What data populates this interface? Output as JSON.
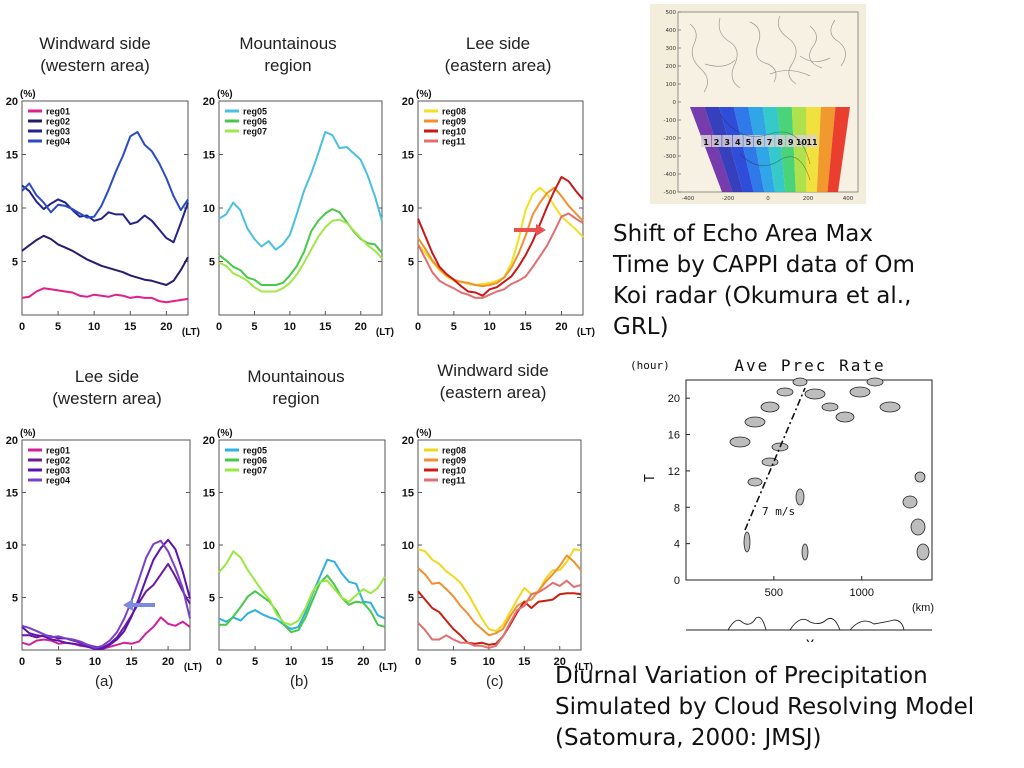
{
  "titles": {
    "a1": "Windward side\n(western area)",
    "b1": "Mountainous\nregion",
    "c1": "Lee side\n(eastern area)",
    "a2": "Lee side\n(western area)",
    "b2": "Mountainous\nregion",
    "c2": "Windward side\n(eastern area)"
  },
  "sublabels": {
    "a": "(a)",
    "b": "(b)",
    "c": "(c)"
  },
  "caption_top": "Shift of Echo Area Max Time by CAPPI data of Om Koi radar (Okumura et al., GRL)",
  "caption_bottom": "Diurnal Variation of Precipitation Simulated by Cloud Resolving Model (Satomura, 2000: JMSJ)",
  "axis_common": {
    "y_unit": "(%)",
    "x_unit": "(LT)",
    "yticks": [
      "5",
      "10",
      "15",
      "20"
    ],
    "xticks": [
      "0",
      "5",
      "10",
      "15",
      "20"
    ]
  },
  "radar_map": {
    "yticks": [
      "500",
      "400",
      "300",
      "200",
      "100",
      "0",
      "-100",
      "-200",
      "-300",
      "-400",
      "-500"
    ],
    "xticks": [
      "-400",
      "-200",
      "0",
      "200",
      "400"
    ],
    "regions": [
      "1",
      "2",
      "3",
      "4",
      "5",
      "6",
      "7",
      "8",
      "9",
      "10",
      "11"
    ],
    "colors": [
      "#6a2ca8",
      "#2530b8",
      "#1d3fd8",
      "#1e6fe8",
      "#1ea0e8",
      "#24c6c8",
      "#3cd070",
      "#a8e040",
      "#f0e030",
      "#f09020",
      "#e83020"
    ]
  },
  "model_panel": {
    "title": "Ave Prec Rate",
    "yunit": "(hour)",
    "ylabel": "T",
    "xlabel": "X",
    "xunit": "(km)",
    "yticks": [
      "0",
      "4",
      "8",
      "12",
      "16",
      "20"
    ],
    "xticks": [
      "500",
      "1000"
    ],
    "annotation": "7 m/s"
  },
  "chart_data": [
    {
      "type": "line",
      "panel": "a1",
      "title": "Windward side (western area)",
      "ylabel": "(%)",
      "xlabel": "(LT)",
      "xlim": [
        0,
        23
      ],
      "ylim": [
        0,
        20
      ],
      "x": [
        0,
        1,
        2,
        3,
        4,
        5,
        6,
        7,
        8,
        9,
        10,
        11,
        12,
        13,
        14,
        15,
        16,
        17,
        18,
        19,
        20,
        21,
        22,
        23
      ],
      "series": [
        {
          "name": "reg01",
          "color": "#e0208a",
          "values": [
            1.6,
            1.7,
            2.2,
            2.5,
            2.4,
            2.3,
            2.2,
            2.1,
            1.8,
            1.7,
            1.9,
            1.8,
            1.7,
            1.9,
            1.8,
            1.6,
            1.7,
            1.6,
            1.6,
            1.3,
            1.2,
            1.3,
            1.4,
            1.5
          ]
        },
        {
          "name": "reg02",
          "color": "#2a1a6a",
          "values": [
            6.0,
            6.5,
            7.0,
            7.4,
            7.1,
            6.6,
            6.3,
            6.0,
            5.6,
            5.2,
            4.9,
            4.6,
            4.4,
            4.2,
            4.0,
            3.7,
            3.5,
            3.3,
            3.2,
            3.0,
            2.8,
            3.2,
            4.2,
            5.4
          ]
        },
        {
          "name": "reg03",
          "color": "#22228a",
          "values": [
            12.1,
            11.6,
            10.6,
            9.9,
            10.4,
            10.8,
            10.5,
            9.8,
            9.2,
            9.3,
            8.8,
            9.0,
            9.6,
            9.4,
            9.4,
            8.5,
            8.7,
            9.3,
            8.8,
            8.0,
            7.2,
            6.8,
            8.6,
            10.5
          ]
        },
        {
          "name": "reg04",
          "color": "#2a4ac8",
          "values": [
            11.6,
            12.3,
            11.2,
            10.5,
            9.6,
            10.3,
            10.2,
            9.9,
            9.5,
            9.1,
            9.2,
            10.2,
            11.7,
            13.4,
            14.9,
            16.7,
            17.1,
            15.9,
            15.3,
            14.2,
            12.8,
            11.1,
            9.8,
            10.8
          ]
        }
      ]
    },
    {
      "type": "line",
      "panel": "b1",
      "title": "Mountainous region",
      "ylabel": "(%)",
      "xlabel": "(LT)",
      "xlim": [
        0,
        23
      ],
      "ylim": [
        0,
        20
      ],
      "x": [
        0,
        1,
        2,
        3,
        4,
        5,
        6,
        7,
        8,
        9,
        10,
        11,
        12,
        13,
        14,
        15,
        16,
        17,
        18,
        19,
        20,
        21,
        22,
        23
      ],
      "series": [
        {
          "name": "reg05",
          "color": "#48c0e0",
          "values": [
            9.0,
            9.4,
            10.5,
            9.8,
            8.1,
            7.1,
            6.4,
            6.9,
            6.1,
            6.6,
            7.5,
            9.5,
            11.6,
            13.2,
            15.1,
            17.1,
            16.8,
            15.6,
            15.7,
            15.1,
            14.5,
            13.0,
            11.1,
            8.8
          ]
        },
        {
          "name": "reg06",
          "color": "#48c848",
          "values": [
            5.6,
            5.1,
            4.5,
            4.2,
            3.5,
            3.3,
            2.8,
            2.8,
            2.8,
            3.0,
            3.7,
            4.6,
            5.9,
            7.8,
            8.8,
            9.5,
            9.9,
            9.6,
            8.7,
            7.8,
            7.1,
            6.7,
            6.6,
            5.8
          ]
        },
        {
          "name": "reg07",
          "color": "#a0e848",
          "values": [
            4.9,
            4.6,
            3.9,
            3.6,
            3.2,
            2.6,
            2.2,
            2.2,
            2.2,
            2.5,
            3.0,
            3.8,
            4.9,
            6.1,
            7.3,
            8.2,
            8.8,
            8.9,
            8.6,
            7.9,
            7.2,
            6.5,
            6.0,
            5.3
          ]
        }
      ]
    },
    {
      "type": "line",
      "panel": "c1",
      "title": "Lee side (eastern area)",
      "ylabel": "(%)",
      "xlabel": "(LT)",
      "xlim": [
        0,
        23
      ],
      "ylim": [
        0,
        20
      ],
      "x": [
        0,
        1,
        2,
        3,
        4,
        5,
        6,
        7,
        8,
        9,
        10,
        11,
        12,
        13,
        14,
        15,
        16,
        17,
        18,
        19,
        20,
        21,
        22,
        23
      ],
      "series": [
        {
          "name": "reg08",
          "color": "#f0e020",
          "values": [
            6.6,
            5.8,
            5.0,
            4.2,
            3.6,
            3.2,
            3.1,
            2.9,
            2.8,
            2.9,
            3.0,
            3.2,
            3.5,
            4.8,
            7.0,
            9.8,
            11.3,
            11.9,
            11.3,
            10.2,
            9.2,
            8.6,
            8.0,
            7.3
          ]
        },
        {
          "name": "reg09",
          "color": "#f09030",
          "values": [
            7.2,
            6.2,
            5.1,
            4.3,
            3.7,
            3.3,
            3.1,
            3.0,
            2.8,
            2.7,
            2.8,
            3.0,
            3.5,
            4.4,
            5.7,
            7.4,
            9.4,
            10.5,
            11.4,
            11.9,
            11.1,
            10.2,
            9.5,
            8.8
          ]
        },
        {
          "name": "reg10",
          "color": "#c81818",
          "values": [
            9.0,
            7.4,
            5.8,
            4.5,
            3.8,
            3.3,
            2.7,
            2.2,
            2.1,
            1.8,
            2.4,
            2.6,
            3.1,
            3.6,
            4.5,
            5.6,
            6.9,
            8.5,
            10.1,
            11.6,
            12.9,
            12.5,
            11.6,
            10.8
          ]
        },
        {
          "name": "reg11",
          "color": "#e07070",
          "values": [
            6.6,
            5.3,
            4.0,
            3.2,
            2.8,
            2.5,
            2.1,
            1.9,
            1.6,
            1.6,
            1.9,
            2.2,
            2.4,
            2.9,
            3.2,
            3.6,
            4.5,
            5.5,
            6.5,
            7.8,
            9.2,
            9.5,
            9.0,
            8.6
          ]
        }
      ]
    },
    {
      "type": "line",
      "panel": "a2",
      "title": "Lee side (western area)",
      "ylabel": "(%)",
      "xlabel": "(LT)",
      "xlim": [
        0,
        23
      ],
      "ylim": [
        0,
        20
      ],
      "x": [
        0,
        1,
        2,
        3,
        4,
        5,
        6,
        7,
        8,
        9,
        10,
        11,
        12,
        13,
        14,
        15,
        16,
        17,
        18,
        19,
        20,
        21,
        22,
        23
      ],
      "series": [
        {
          "name": "reg01",
          "color": "#d0209a",
          "values": [
            0.7,
            0.5,
            0.9,
            1.0,
            0.9,
            0.6,
            0.7,
            0.6,
            0.4,
            0.3,
            0.2,
            0.1,
            0.3,
            0.5,
            0.7,
            0.6,
            0.8,
            1.6,
            2.2,
            3.1,
            2.5,
            2.3,
            2.7,
            2.2
          ]
        },
        {
          "name": "reg02",
          "color": "#6a1a9a",
          "values": [
            1.4,
            1.4,
            1.2,
            1.4,
            1.3,
            1.1,
            1.1,
            0.9,
            0.7,
            0.5,
            0.3,
            0.2,
            0.6,
            1.2,
            2.2,
            3.3,
            4.5,
            5.6,
            6.2,
            7.2,
            8.2,
            7.0,
            5.6,
            4.4
          ]
        },
        {
          "name": "reg03",
          "color": "#5a14b0",
          "values": [
            2.2,
            1.6,
            1.4,
            1.3,
            1.0,
            0.9,
            0.7,
            0.6,
            0.5,
            0.3,
            0.1,
            0.1,
            0.5,
            1.0,
            1.8,
            3.2,
            4.9,
            6.8,
            8.6,
            9.7,
            10.5,
            9.6,
            7.5,
            4.9
          ]
        },
        {
          "name": "reg04",
          "color": "#7a40c8",
          "values": [
            2.3,
            2.1,
            1.8,
            1.5,
            1.2,
            1.3,
            1.1,
            1.0,
            0.8,
            0.5,
            0.2,
            0.4,
            0.9,
            1.7,
            3.0,
            4.7,
            6.7,
            8.8,
            10.1,
            10.4,
            9.4,
            7.8,
            5.9,
            3.0
          ]
        }
      ]
    },
    {
      "type": "line",
      "panel": "b2",
      "title": "Mountainous region",
      "ylabel": "(%)",
      "xlabel": "(LT)",
      "xlim": [
        0,
        23
      ],
      "ylim": [
        0,
        20
      ],
      "x": [
        0,
        1,
        2,
        3,
        4,
        5,
        6,
        7,
        8,
        9,
        10,
        11,
        12,
        13,
        14,
        15,
        16,
        17,
        18,
        19,
        20,
        21,
        22,
        23
      ],
      "series": [
        {
          "name": "reg05",
          "color": "#30b0e0",
          "values": [
            3.0,
            2.7,
            3.1,
            2.8,
            3.5,
            3.8,
            3.4,
            3.1,
            2.9,
            2.4,
            2.0,
            2.2,
            3.6,
            5.4,
            7.0,
            8.6,
            8.4,
            7.3,
            6.5,
            6.3,
            4.6,
            4.5,
            3.3,
            3.0
          ]
        },
        {
          "name": "reg06",
          "color": "#48c848",
          "values": [
            2.4,
            2.4,
            3.2,
            4.1,
            5.1,
            5.6,
            5.1,
            4.6,
            3.7,
            2.4,
            1.7,
            1.9,
            3.1,
            4.8,
            6.4,
            7.1,
            6.2,
            5.0,
            4.3,
            4.6,
            4.5,
            3.7,
            2.4,
            2.2
          ]
        },
        {
          "name": "reg07",
          "color": "#98e840",
          "values": [
            7.4,
            8.2,
            9.4,
            8.8,
            7.6,
            6.6,
            5.6,
            4.8,
            3.4,
            2.6,
            2.4,
            2.8,
            4.0,
            5.6,
            6.5,
            6.6,
            5.8,
            5.0,
            4.6,
            5.2,
            5.8,
            5.4,
            5.9,
            7.0
          ]
        }
      ]
    },
    {
      "type": "line",
      "panel": "c2",
      "title": "Windward side (eastern area)",
      "ylabel": "(%)",
      "xlabel": "(LT)",
      "xlim": [
        0,
        23
      ],
      "ylim": [
        0,
        20
      ],
      "x": [
        0,
        1,
        2,
        3,
        4,
        5,
        6,
        7,
        8,
        9,
        10,
        11,
        12,
        13,
        14,
        15,
        16,
        17,
        18,
        19,
        20,
        21,
        22,
        23
      ],
      "series": [
        {
          "name": "reg08",
          "color": "#f0d820",
          "values": [
            9.6,
            9.4,
            8.6,
            8.2,
            7.5,
            7.0,
            6.4,
            5.4,
            4.2,
            3.0,
            2.0,
            1.8,
            2.4,
            3.6,
            4.8,
            5.9,
            5.3,
            5.6,
            6.8,
            7.6,
            7.6,
            8.4,
            9.6,
            9.5
          ]
        },
        {
          "name": "reg09",
          "color": "#f09030",
          "values": [
            7.8,
            7.2,
            6.3,
            6.4,
            5.8,
            5.1,
            4.2,
            3.5,
            2.6,
            2.0,
            1.4,
            1.6,
            2.0,
            3.2,
            4.2,
            4.6,
            4.8,
            5.6,
            6.5,
            7.2,
            8.0,
            9.0,
            8.4,
            7.6
          ]
        },
        {
          "name": "reg10",
          "color": "#c82010",
          "values": [
            5.6,
            4.8,
            4.0,
            3.6,
            2.8,
            2.0,
            1.4,
            0.7,
            0.6,
            0.7,
            0.5,
            0.6,
            1.3,
            2.4,
            3.6,
            4.6,
            4.0,
            4.6,
            4.7,
            4.8,
            5.3,
            5.4,
            5.4,
            5.3
          ]
        },
        {
          "name": "reg11",
          "color": "#e07070",
          "values": [
            2.6,
            1.9,
            1.0,
            1.0,
            1.4,
            1.0,
            0.7,
            0.7,
            0.4,
            0.4,
            0.2,
            0.4,
            1.3,
            2.6,
            3.8,
            4.2,
            5.3,
            5.5,
            5.9,
            6.4,
            6.1,
            6.6,
            6.0,
            6.2
          ]
        }
      ]
    }
  ]
}
